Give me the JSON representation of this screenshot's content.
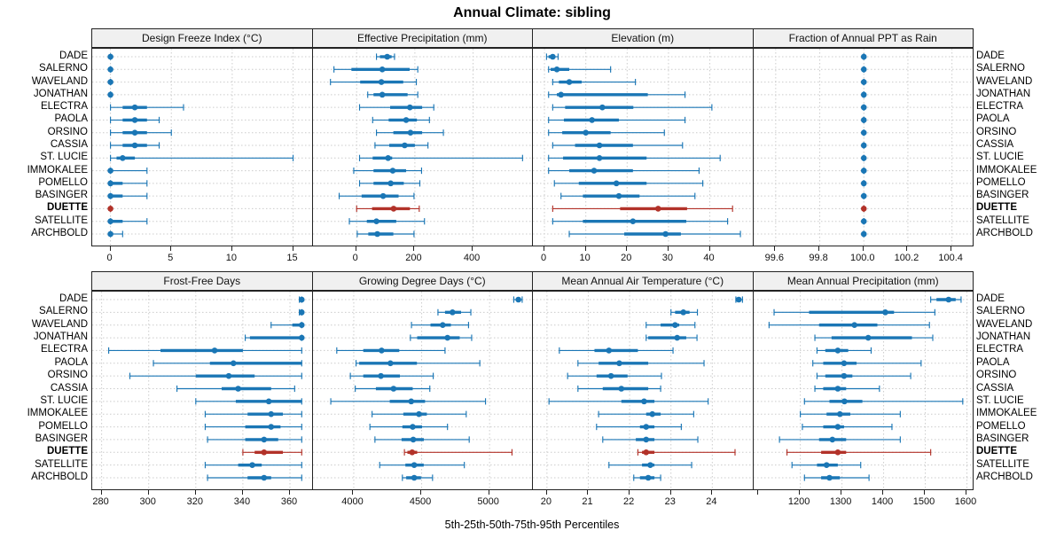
{
  "title": "Annual Climate: sibling",
  "caption": "5th-25th-50th-75th-95th Percentiles",
  "colors": {
    "series": "#1a76b5",
    "highlight": "#b23229",
    "grid": "#cccccc",
    "strip_bg": "#f0f0f0",
    "border": "#222222"
  },
  "chart_data": {
    "type": "dot-interval-trellis",
    "percentiles": [
      5,
      25,
      50,
      75,
      95
    ],
    "stations": [
      "DADE",
      "SALERNO",
      "WAVELAND",
      "JONATHAN",
      "ELECTRA",
      "PAOLA",
      "ORSINO",
      "CASSIA",
      "ST. LUCIE",
      "IMMOKALEE",
      "POMELLO",
      "BASINGER",
      "DUETTE",
      "SATELLITE",
      "ARCHBOLD"
    ],
    "highlight_station": "DUETTE",
    "panels": [
      {
        "title": "Design Freeze Index (°C)",
        "row": 0,
        "col": 0,
        "xlim": [
          -1.5,
          16.6
        ],
        "ticks": [
          {
            "v": 0,
            "label": "0"
          },
          {
            "v": 5,
            "label": "5"
          },
          {
            "v": 10,
            "label": "10"
          },
          {
            "v": 15,
            "label": "15"
          }
        ],
        "values": [
          [
            0,
            0,
            0,
            0,
            0
          ],
          [
            0,
            0,
            0,
            0,
            0
          ],
          [
            0,
            0,
            0,
            0,
            0
          ],
          [
            0,
            0,
            0,
            0,
            0
          ],
          [
            0,
            1,
            2,
            3,
            6
          ],
          [
            0,
            1,
            2,
            3,
            4
          ],
          [
            0,
            1,
            2,
            3,
            5
          ],
          [
            0,
            1,
            2,
            3,
            4
          ],
          [
            0,
            0.5,
            1,
            2,
            15
          ],
          [
            0,
            0,
            0,
            0,
            3
          ],
          [
            0,
            0,
            0,
            1,
            3
          ],
          [
            0,
            0,
            0,
            1,
            3
          ],
          [
            0,
            0,
            0,
            0,
            0
          ],
          [
            0,
            0,
            0,
            1,
            3
          ],
          [
            0,
            0,
            0,
            0,
            1
          ]
        ]
      },
      {
        "title": "Effective Precipitation (mm)",
        "row": 0,
        "col": 1,
        "xlim": [
          -150,
          607
        ],
        "ticks": [
          {
            "v": 0,
            "label": "0"
          },
          {
            "v": 200,
            "label": "200"
          },
          {
            "v": 400,
            "label": "400"
          }
        ],
        "values": [
          [
            68,
            80,
            105,
            120,
            130
          ],
          [
            -78,
            -18,
            88,
            182,
            210
          ],
          [
            -90,
            12,
            85,
            160,
            205
          ],
          [
            38,
            58,
            88,
            175,
            210
          ],
          [
            10,
            115,
            183,
            225,
            265
          ],
          [
            55,
            110,
            170,
            207,
            250
          ],
          [
            68,
            126,
            185,
            225,
            298
          ],
          [
            63,
            112,
            165,
            200,
            245
          ],
          [
            10,
            55,
            108,
            122,
            570
          ],
          [
            -10,
            58,
            124,
            170,
            223
          ],
          [
            10,
            58,
            117,
            162,
            217
          ],
          [
            -60,
            17,
            91,
            144,
            197
          ],
          [
            0,
            53,
            127,
            183,
            215
          ],
          [
            -25,
            35,
            68,
            136,
            233
          ],
          [
            2,
            40,
            71,
            126,
            197
          ]
        ]
      },
      {
        "title": "Elevation (m)",
        "row": 0,
        "col": 2,
        "xlim": [
          -2.8,
          50.5
        ],
        "ticks": [
          {
            "v": 0,
            "label": "0"
          },
          {
            "v": 10,
            "label": "10"
          },
          {
            "v": 20,
            "label": "20"
          },
          {
            "v": 30,
            "label": "30"
          },
          {
            "v": 40,
            "label": "40"
          }
        ],
        "values": [
          [
            0.5,
            1,
            2,
            2.5,
            3.3
          ],
          [
            1,
            1.5,
            3,
            6,
            16
          ],
          [
            2,
            3.5,
            6,
            9,
            22
          ],
          [
            1,
            3,
            4,
            25,
            34
          ],
          [
            2,
            5,
            14,
            21.5,
            40.5
          ],
          [
            1,
            4.7,
            11.5,
            18,
            34
          ],
          [
            1,
            4.3,
            10,
            16,
            29
          ],
          [
            2,
            7.4,
            13.3,
            21.4,
            33.4
          ],
          [
            1,
            4.5,
            13.3,
            24.7,
            42.5
          ],
          [
            1,
            6,
            12,
            21.4,
            37.4
          ],
          [
            2.4,
            8.3,
            17.4,
            24.7,
            38.3
          ],
          [
            4,
            9.3,
            18,
            23,
            36.4
          ],
          [
            2,
            18.3,
            27.5,
            34.5,
            45.5
          ],
          [
            2,
            9.3,
            21.4,
            34.3,
            44.3
          ],
          [
            6,
            19.3,
            29.3,
            33,
            47.4
          ]
        ]
      },
      {
        "title": "Fraction of Annual PPT as Rain",
        "row": 0,
        "col": 3,
        "xlim": [
          99.5,
          100.5
        ],
        "ticks": [
          {
            "v": 99.6,
            "label": "99.6"
          },
          {
            "v": 99.8,
            "label": "99.8"
          },
          {
            "v": 100.0,
            "label": "100.0"
          },
          {
            "v": 100.2,
            "label": "100.2"
          },
          {
            "v": 100.4,
            "label": "100.4"
          }
        ],
        "values": [
          [
            100,
            100,
            100,
            100,
            100
          ],
          [
            100,
            100,
            100,
            100,
            100
          ],
          [
            100,
            100,
            100,
            100,
            100
          ],
          [
            100,
            100,
            100,
            100,
            100
          ],
          [
            100,
            100,
            100,
            100,
            100
          ],
          [
            100,
            100,
            100,
            100,
            100
          ],
          [
            100,
            100,
            100,
            100,
            100
          ],
          [
            100,
            100,
            100,
            100,
            100
          ],
          [
            100,
            100,
            100,
            100,
            100
          ],
          [
            100,
            100,
            100,
            100,
            100
          ],
          [
            100,
            100,
            100,
            100,
            100
          ],
          [
            100,
            100,
            100,
            100,
            100
          ],
          [
            100,
            100,
            100,
            100,
            100
          ],
          [
            100,
            100,
            100,
            100,
            100
          ],
          [
            100,
            100,
            100,
            100,
            100
          ]
        ]
      },
      {
        "title": "Frost-Free Days",
        "row": 1,
        "col": 0,
        "xlim": [
          276,
          369.6
        ],
        "ticks": [
          {
            "v": 280,
            "label": "280"
          },
          {
            "v": 300,
            "label": "300"
          },
          {
            "v": 320,
            "label": "320"
          },
          {
            "v": 340,
            "label": "340"
          },
          {
            "v": 360,
            "label": "360"
          }
        ],
        "values": [
          [
            364,
            365,
            365,
            365,
            365
          ],
          [
            364,
            365,
            365,
            365,
            365
          ],
          [
            352,
            361,
            365,
            365,
            365
          ],
          [
            341,
            343,
            365,
            365,
            365
          ],
          [
            283,
            305,
            328,
            340,
            365
          ],
          [
            302,
            326,
            336,
            365,
            365
          ],
          [
            292,
            320,
            334,
            345,
            365
          ],
          [
            312,
            331,
            338,
            352,
            362
          ],
          [
            320,
            337,
            351,
            365,
            365
          ],
          [
            324,
            342,
            352,
            357,
            365
          ],
          [
            324,
            341,
            352,
            356,
            365
          ],
          [
            325,
            341,
            349,
            355,
            365
          ],
          [
            340,
            345,
            349,
            357,
            365
          ],
          [
            324,
            338,
            344,
            348,
            365
          ],
          [
            325,
            342,
            349,
            352,
            365
          ]
        ]
      },
      {
        "title": "Growing Degree Days (°C)",
        "row": 1,
        "col": 1,
        "xlim": [
          3700,
          5322
        ],
        "ticks": [
          {
            "v": 4000,
            "label": "4000"
          },
          {
            "v": 4500,
            "label": "4500"
          },
          {
            "v": 5000,
            "label": "5000"
          }
        ],
        "values": [
          [
            5178,
            5195,
            5212,
            5228,
            5240
          ],
          [
            4620,
            4672,
            4727,
            4790,
            4862
          ],
          [
            4425,
            4565,
            4655,
            4715,
            4845
          ],
          [
            4417,
            4467,
            4690,
            4780,
            4868
          ],
          [
            3875,
            4070,
            4205,
            4335,
            4672
          ],
          [
            4017,
            4040,
            4270,
            4465,
            4928
          ],
          [
            3975,
            4070,
            4200,
            4340,
            4585
          ],
          [
            4011,
            4163,
            4293,
            4434,
            4560
          ],
          [
            3831,
            4265,
            4423,
            4525,
            4970
          ],
          [
            4135,
            4365,
            4480,
            4538,
            4828
          ],
          [
            4119,
            4358,
            4434,
            4503,
            4690
          ],
          [
            4156,
            4352,
            4438,
            4516,
            4850
          ],
          [
            4373,
            4395,
            4430,
            4467,
            5165
          ],
          [
            4191,
            4380,
            4445,
            4515,
            4814
          ],
          [
            4358,
            4386,
            4445,
            4495,
            4580
          ]
        ]
      },
      {
        "title": "Mean Annual Air Temperature (°C)",
        "row": 1,
        "col": 2,
        "xlim": [
          19.66,
          24.99
        ],
        "ticks": [
          {
            "v": 20,
            "label": "20"
          },
          {
            "v": 21,
            "label": "21"
          },
          {
            "v": 22,
            "label": "22"
          },
          {
            "v": 23,
            "label": "23"
          },
          {
            "v": 24,
            "label": "24"
          }
        ],
        "values": [
          [
            24.57,
            24.6,
            24.64,
            24.68,
            24.73
          ],
          [
            23.0,
            23.1,
            23.3,
            23.45,
            23.64
          ],
          [
            22.4,
            22.75,
            23.1,
            23.2,
            23.58
          ],
          [
            22.4,
            22.45,
            23.15,
            23.37,
            23.63
          ],
          [
            20.3,
            21.15,
            21.5,
            22.2,
            23.05
          ],
          [
            20.75,
            21.25,
            21.75,
            22.45,
            23.8
          ],
          [
            20.5,
            21.2,
            21.55,
            21.95,
            22.77
          ],
          [
            20.75,
            21.35,
            21.8,
            22.45,
            22.75
          ],
          [
            20.05,
            21.8,
            22.35,
            22.6,
            23.9
          ],
          [
            21.25,
            22.4,
            22.55,
            22.75,
            23.55
          ],
          [
            21.2,
            22.25,
            22.4,
            22.6,
            23.25
          ],
          [
            21.35,
            22.15,
            22.4,
            22.6,
            23.65
          ],
          [
            22.2,
            22.3,
            22.4,
            22.6,
            24.55
          ],
          [
            21.5,
            22.3,
            22.5,
            22.6,
            23.5
          ],
          [
            22.1,
            22.25,
            22.45,
            22.6,
            22.75
          ]
        ]
      },
      {
        "title": "Mean Annual Precipitation (mm)",
        "row": 1,
        "col": 3,
        "xlim": [
          1088,
          1617
        ],
        "ticks": [
          {
            "v": 1200,
            "label": "1200"
          },
          {
            "v": 1300,
            "label": "1300"
          },
          {
            "v": 1400,
            "label": "1400"
          },
          {
            "v": 1500,
            "label": "1500"
          },
          {
            "v": 1600,
            "label": "1600"
          }
        ],
        "minor_ticks": [
          1100
        ],
        "values": [
          [
            1513,
            1527,
            1556,
            1573,
            1586
          ],
          [
            1137,
            1221,
            1404,
            1425,
            1523
          ],
          [
            1125,
            1245,
            1330,
            1385,
            1510
          ],
          [
            1235,
            1275,
            1363,
            1468,
            1518
          ],
          [
            1240,
            1260,
            1290,
            1315,
            1370
          ],
          [
            1230,
            1255,
            1305,
            1335,
            1490
          ],
          [
            1240,
            1260,
            1305,
            1325,
            1465
          ],
          [
            1235,
            1255,
            1290,
            1310,
            1390
          ],
          [
            1210,
            1270,
            1306,
            1349,
            1590
          ],
          [
            1200,
            1263,
            1295,
            1320,
            1440
          ],
          [
            1205,
            1255,
            1290,
            1305,
            1420
          ],
          [
            1150,
            1245,
            1277,
            1310,
            1440
          ],
          [
            1168,
            1250,
            1290,
            1310,
            1513
          ],
          [
            1180,
            1240,
            1263,
            1290,
            1345
          ],
          [
            1210,
            1250,
            1270,
            1295,
            1365
          ]
        ]
      }
    ]
  }
}
